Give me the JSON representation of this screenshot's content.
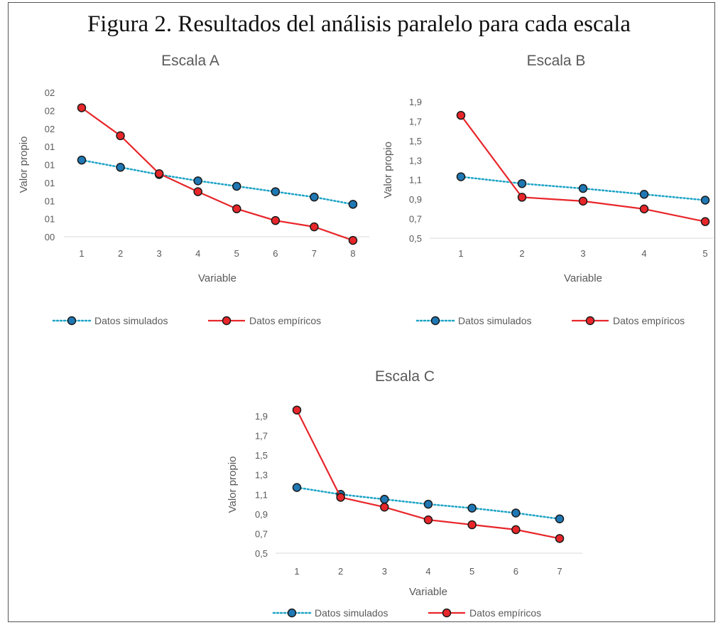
{
  "figure_title": "Figura 2. Resultados del análisis paralelo para cada escala",
  "colors": {
    "simulated": "#1CA3C6",
    "empirical": "#E8262A",
    "marker_sim": "#1F78B4",
    "marker_emp": "#E8262A",
    "axis_text": "#595959"
  },
  "chart_data": [
    {
      "type": "line",
      "title": "Escala A",
      "xlabel": "Variable",
      "ylabel": "Valor propio",
      "x": [
        1,
        2,
        3,
        4,
        5,
        6,
        7,
        8
      ],
      "y_tick_labels": [
        "00",
        "01",
        "01",
        "01",
        "01",
        "01",
        "02",
        "02",
        "02"
      ],
      "ylim": [
        0,
        8
      ],
      "series": [
        {
          "name": "Datos simulados",
          "style": "dotted",
          "values": [
            4.25,
            3.85,
            3.45,
            3.1,
            2.8,
            2.5,
            2.2,
            1.8
          ]
        },
        {
          "name": "Datos empíricos",
          "style": "solid",
          "values": [
            7.15,
            5.6,
            3.5,
            2.5,
            1.55,
            0.9,
            0.55,
            -0.2
          ]
        }
      ],
      "legend": "bottom"
    },
    {
      "type": "line",
      "title": "Escala B",
      "xlabel": "Variable",
      "ylabel": "Valor propio",
      "x": [
        1,
        2,
        3,
        4,
        5
      ],
      "y_tick_labels": [
        "0,5",
        "0,7",
        "0,9",
        "1,1",
        "1,3",
        "1,5",
        "1,7",
        "1,9"
      ],
      "ylim": [
        0.5,
        1.9
      ],
      "series": [
        {
          "name": "Datos simulados",
          "style": "dotted",
          "values": [
            1.13,
            1.06,
            1.01,
            0.95,
            0.89
          ]
        },
        {
          "name": "Datos empíricos",
          "style": "solid",
          "values": [
            1.76,
            0.92,
            0.88,
            0.8,
            0.67
          ]
        }
      ],
      "legend": "bottom"
    },
    {
      "type": "line",
      "title": "Escala C",
      "xlabel": "Variable",
      "ylabel": "Valor propio",
      "x": [
        1,
        2,
        3,
        4,
        5,
        6,
        7
      ],
      "y_tick_labels": [
        "0,5",
        "0,7",
        "0,9",
        "1,1",
        "1,3",
        "1,5",
        "1,7",
        "1,9"
      ],
      "ylim": [
        0.5,
        1.9
      ],
      "series": [
        {
          "name": "Datos simulados",
          "style": "dotted",
          "values": [
            1.17,
            1.1,
            1.05,
            1.0,
            0.96,
            0.91,
            0.85
          ]
        },
        {
          "name": "Datos empíricos",
          "style": "solid",
          "values": [
            1.96,
            1.07,
            0.97,
            0.84,
            0.79,
            0.74,
            0.65
          ]
        }
      ],
      "legend": "bottom"
    }
  ]
}
